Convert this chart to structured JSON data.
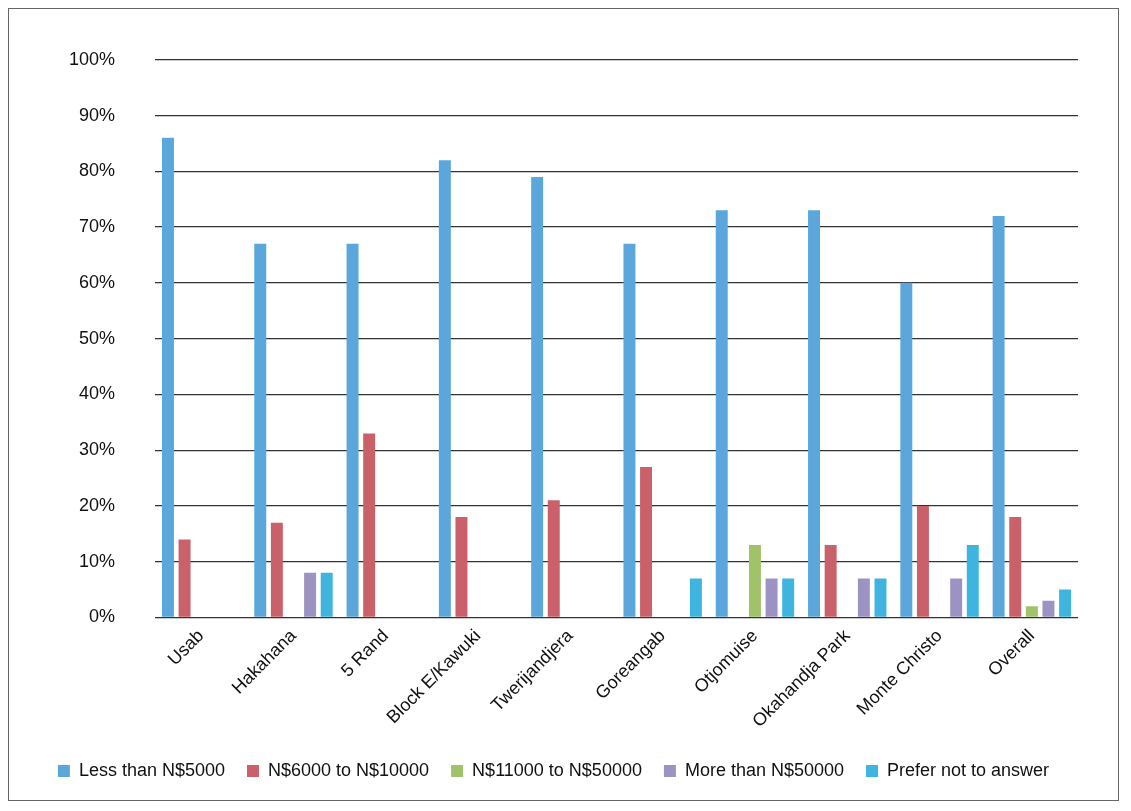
{
  "chart_data": {
    "type": "bar",
    "categories": [
      "Usab",
      "Hakahana",
      "5 Rand",
      "Block E/Kawuki",
      "Twerijandjera",
      "Goreangab",
      "Otjomuise",
      "Okahandja Park",
      "Monte Christo",
      "Overall"
    ],
    "series": [
      {
        "name": "Less than N$5000",
        "color": "#5ba7dc",
        "values": [
          86,
          67,
          67,
          82,
          79,
          67,
          73,
          73,
          60,
          72
        ]
      },
      {
        "name": "N$6000 to N$10000",
        "color": "#c9606a",
        "values": [
          14,
          17,
          33,
          18,
          21,
          27,
          null,
          13,
          20,
          18
        ]
      },
      {
        "name": "N$11000 to N$50000",
        "color": "#9fc26a",
        "values": [
          null,
          null,
          null,
          null,
          null,
          null,
          13,
          null,
          null,
          2
        ]
      },
      {
        "name": "More than N$50000",
        "color": "#9d93c2",
        "values": [
          null,
          8,
          null,
          null,
          null,
          null,
          7,
          7,
          7,
          3
        ]
      },
      {
        "name": "Prefer not to answer",
        "color": "#3fb4de",
        "values": [
          null,
          8,
          null,
          null,
          null,
          7,
          7,
          7,
          13,
          5
        ]
      }
    ],
    "ylim": [
      0,
      100
    ],
    "yticks": [
      {
        "value": 0,
        "label": "0%"
      },
      {
        "value": 10,
        "label": "10%"
      },
      {
        "value": 20,
        "label": "20%"
      },
      {
        "value": 30,
        "label": "30%"
      },
      {
        "value": 40,
        "label": "40%"
      },
      {
        "value": 50,
        "label": "50%"
      },
      {
        "value": 60,
        "label": "60%"
      },
      {
        "value": 70,
        "label": "70%"
      },
      {
        "value": 80,
        "label": "80%"
      },
      {
        "value": 90,
        "label": "90%"
      },
      {
        "value": 100,
        "label": "100%"
      }
    ],
    "grid": "y",
    "legend": "bottom"
  }
}
